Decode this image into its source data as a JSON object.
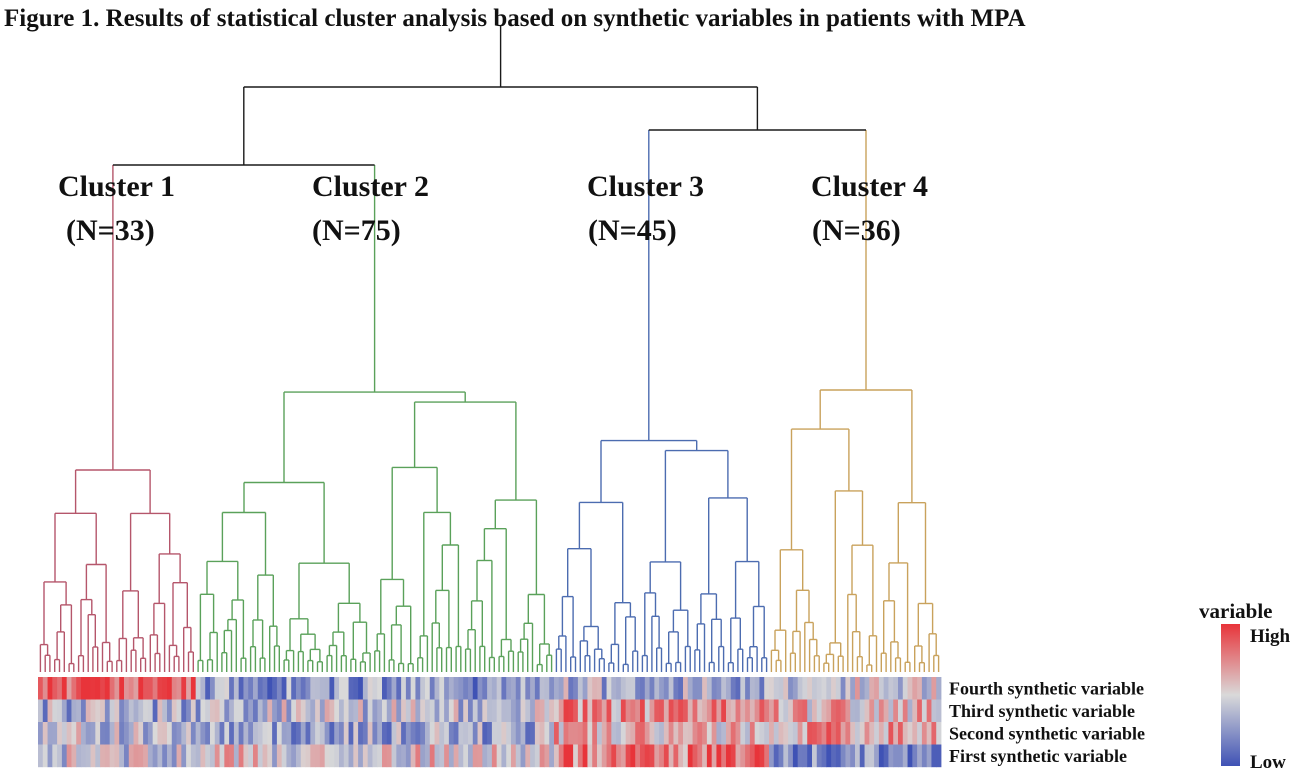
{
  "title": "Figure 1. Results of statistical cluster analysis based on synthetic variables in patients with MPA",
  "chart_data": {
    "type": "heatmap",
    "subtype": "hierarchical-clustering-dendrogram",
    "clusters": [
      {
        "name": "Cluster 1",
        "n_label": "(N=33)",
        "n": 33,
        "color": "#b5566b"
      },
      {
        "name": "Cluster 2",
        "n_label": "(N=75)",
        "n": 75,
        "color": "#5aa15a"
      },
      {
        "name": "Cluster 3",
        "n_label": "(N=45)",
        "n": 45,
        "color": "#4c6cb0"
      },
      {
        "name": "Cluster 4",
        "n_label": "(N=36)",
        "n": 36,
        "color": "#c9a25c"
      }
    ],
    "rows": [
      {
        "label": "Fourth synthetic variable"
      },
      {
        "label": "Third synthetic variable"
      },
      {
        "label": "Second synthetic variable"
      },
      {
        "label": "First synthetic variable"
      }
    ],
    "cluster_row_trend": [
      [
        0.92,
        0.25,
        0.35,
        0.45
      ],
      [
        0.35,
        0.4,
        0.7,
        0.62
      ],
      [
        0.42,
        0.33,
        0.6,
        0.68
      ],
      [
        0.45,
        0.52,
        0.8,
        0.2
      ]
    ],
    "legend": {
      "title": "variable",
      "high_label": "High",
      "low_label": "Low",
      "high_color": "#e8343a",
      "mid_color": "#d9d9d9",
      "low_color": "#3f52b5",
      "placement": "right"
    }
  }
}
